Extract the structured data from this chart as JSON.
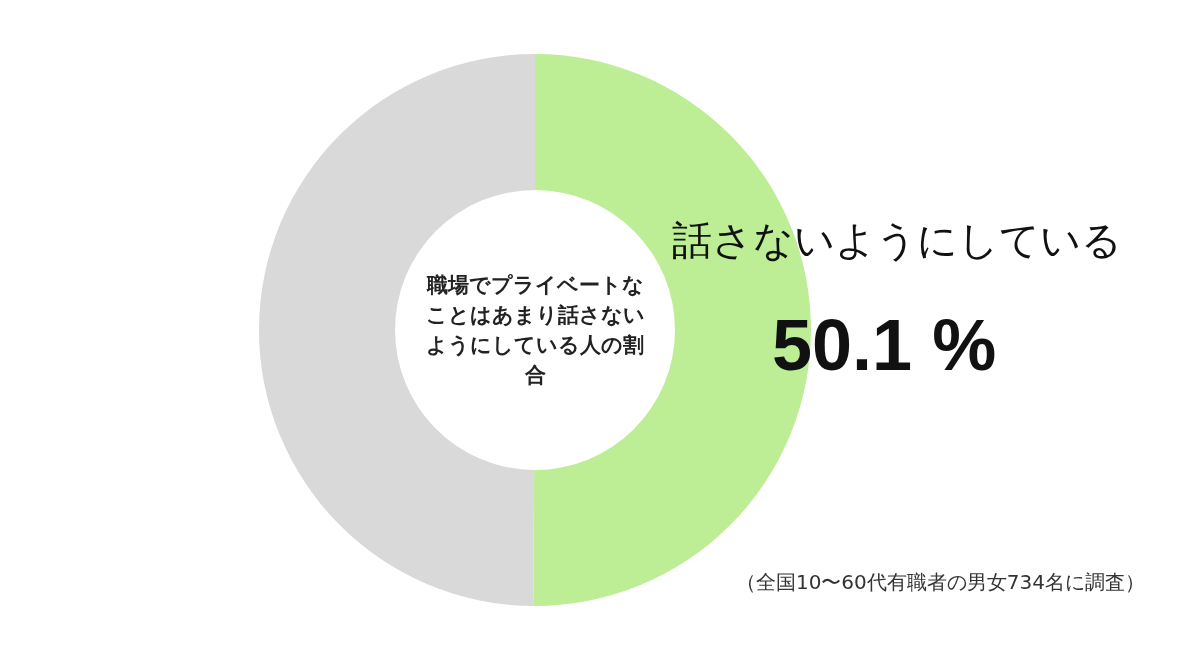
{
  "chart_data": {
    "type": "donut",
    "title": "職場でプライベートなことはあまり話さないようにしている人の割合",
    "categories": [
      "話さないようにしている",
      null
    ],
    "values": [
      50.1,
      49.9
    ],
    "colors": [
      "#bdee96",
      "#d9d9d9"
    ],
    "value_labels": [
      "50.1 %",
      null
    ],
    "annotations": [
      "（全国10〜60代有職者の男女734名に調査）"
    ],
    "legend": false
  }
}
